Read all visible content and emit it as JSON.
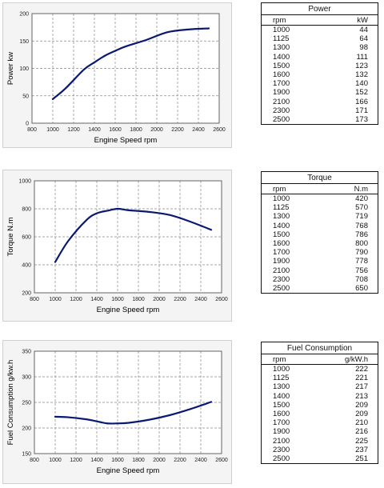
{
  "chart_data": [
    {
      "type": "line",
      "series": [
        {
          "x": [
            1000,
            1125,
            1300,
            1400,
            1500,
            1600,
            1700,
            1900,
            2100,
            2300,
            2500
          ],
          "values": [
            44,
            64,
            98,
            111,
            123,
            132,
            140,
            152,
            166,
            171,
            173
          ]
        }
      ],
      "xlabel": "Engine Speed rpm",
      "ylabel": "Power kw",
      "xlim": [
        800,
        2600
      ],
      "ylim": [
        0,
        200
      ],
      "xticks": [
        800,
        1000,
        1200,
        1400,
        1600,
        1800,
        2000,
        2200,
        2400,
        2600
      ],
      "yticks": [
        0,
        50,
        100,
        150,
        200
      ],
      "grid": true,
      "color": "#0a1a73"
    },
    {
      "type": "line",
      "series": [
        {
          "x": [
            1000,
            1125,
            1300,
            1400,
            1500,
            1600,
            1700,
            1900,
            2100,
            2300,
            2500
          ],
          "values": [
            420,
            570,
            719,
            768,
            786,
            800,
            790,
            778,
            756,
            708,
            650
          ]
        }
      ],
      "xlabel": "Engine Speed rpm",
      "ylabel": "Torque N.m",
      "xlim": [
        800,
        2600
      ],
      "ylim": [
        200,
        1000
      ],
      "xticks": [
        800,
        1000,
        1200,
        1400,
        1600,
        1800,
        2000,
        2200,
        2400,
        2600
      ],
      "yticks": [
        200,
        400,
        600,
        800,
        1000
      ],
      "grid": true,
      "color": "#0a1a73"
    },
    {
      "type": "line",
      "series": [
        {
          "x": [
            1000,
            1125,
            1300,
            1400,
            1500,
            1600,
            1700,
            1900,
            2100,
            2300,
            2500
          ],
          "values": [
            222,
            221,
            217,
            213,
            209,
            209,
            210,
            216,
            225,
            237,
            251
          ]
        }
      ],
      "xlabel": "Engine Speed rpm",
      "ylabel": "Fuel Consumption g/kw.h",
      "xlim": [
        800,
        2600
      ],
      "ylim": [
        150,
        350
      ],
      "xticks": [
        800,
        1000,
        1200,
        1400,
        1600,
        1800,
        2000,
        2200,
        2400,
        2600
      ],
      "yticks": [
        150,
        200,
        250,
        300,
        350
      ],
      "grid": true,
      "color": "#0a1a73"
    }
  ],
  "tables": [
    {
      "title": "Power",
      "col1": "rpm",
      "col2": "kW",
      "rows": [
        [
          "1000",
          "44"
        ],
        [
          "1125",
          "64"
        ],
        [
          "1300",
          "98"
        ],
        [
          "1400",
          "111"
        ],
        [
          "1500",
          "123"
        ],
        [
          "1600",
          "132"
        ],
        [
          "1700",
          "140"
        ],
        [
          "1900",
          "152"
        ],
        [
          "2100",
          "166"
        ],
        [
          "2300",
          "171"
        ],
        [
          "2500",
          "173"
        ]
      ]
    },
    {
      "title": "Torque",
      "col1": "rpm",
      "col2": "N.m",
      "rows": [
        [
          "1000",
          "420"
        ],
        [
          "1125",
          "570"
        ],
        [
          "1300",
          "719"
        ],
        [
          "1400",
          "768"
        ],
        [
          "1500",
          "786"
        ],
        [
          "1600",
          "800"
        ],
        [
          "1700",
          "790"
        ],
        [
          "1900",
          "778"
        ],
        [
          "2100",
          "756"
        ],
        [
          "2300",
          "708"
        ],
        [
          "2500",
          "650"
        ]
      ]
    },
    {
      "title": "Fuel Consumption",
      "col1": "rpm",
      "col2": "g/kW.h",
      "rows": [
        [
          "1000",
          "222"
        ],
        [
          "1125",
          "221"
        ],
        [
          "1300",
          "217"
        ],
        [
          "1400",
          "213"
        ],
        [
          "1500",
          "209"
        ],
        [
          "1600",
          "209"
        ],
        [
          "1700",
          "210"
        ],
        [
          "1900",
          "216"
        ],
        [
          "2100",
          "225"
        ],
        [
          "2300",
          "237"
        ],
        [
          "2500",
          "251"
        ]
      ]
    }
  ]
}
